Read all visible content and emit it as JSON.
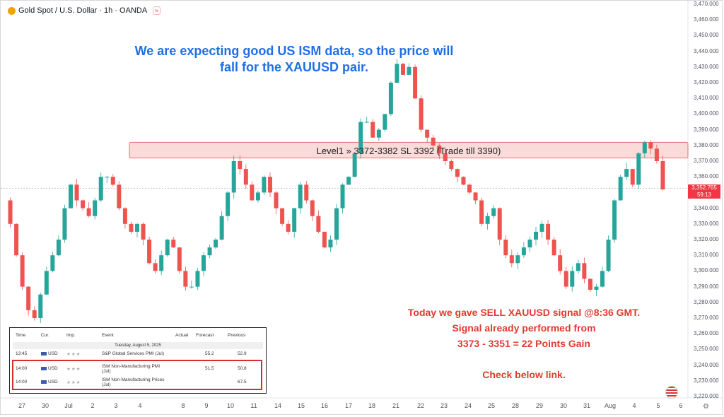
{
  "header": {
    "symbol_title": "Gold Spot / U.S. Dollar · 1h · OANDA",
    "coin_icon": "gold-coin-icon",
    "indicator_icon": "wave-icon"
  },
  "annotations": {
    "top_note": "We are expecting good US ISM data, so the price will fall for the XAUUSD pair.",
    "zone_label": "Level1 » 3372-3382 SL 3392 (Trade till 3390)",
    "signal_lines": [
      "Today we gave SELL XAUUSD signal @8:36 GMT.",
      "Signal already performed from",
      "3373 - 3351 = 22 Points Gain",
      "",
      "Check below link."
    ]
  },
  "price_axis": {
    "ticks": [
      "3,470.000",
      "3,460.000",
      "3,450.000",
      "3,440.000",
      "3,430.000",
      "3,420.000",
      "3,410.000",
      "3,400.000",
      "3,390.000",
      "3,380.000",
      "3,370.000",
      "3,360.000",
      "3,350.000",
      "3,340.000",
      "3,330.000",
      "3,320.000",
      "3,310.000",
      "3,300.000",
      "3,290.000",
      "3,280.000",
      "3,270.000",
      "3,260.000",
      "3,250.000",
      "3,240.000",
      "3,230.000",
      "3,220.000"
    ],
    "current_price": "3,352.765",
    "countdown": "59:13"
  },
  "time_axis": {
    "ticks": [
      "27",
      "30",
      "Jul",
      "2",
      "3",
      "4",
      "8",
      "9",
      "10",
      "11",
      "14",
      "15",
      "16",
      "17",
      "18",
      "21",
      "22",
      "23",
      "24",
      "25",
      "28",
      "29",
      "30",
      "31",
      "Aug",
      "4",
      "5",
      "6"
    ]
  },
  "calendar": {
    "headers": [
      "Time",
      "Cur.",
      "Imp.",
      "Event",
      "Actual",
      "Forecast",
      "Previous"
    ],
    "date": "Tuesday, August 5, 2025",
    "rows": [
      {
        "time": "13:45",
        "cur": "USD",
        "imp": "★★★",
        "event": "S&P Global Services PMI (Jul)",
        "actual": "",
        "forecast": "55.2",
        "previous": "52.9"
      },
      {
        "time": "14:00",
        "cur": "USD",
        "imp": "★★★",
        "event": "ISM Non-Manufacturing PMI (Jul)",
        "actual": "",
        "forecast": "51.5",
        "previous": "50.8"
      },
      {
        "time": "14:00",
        "cur": "USD",
        "imp": "★★★",
        "event": "ISM Non-Manufacturing Prices (Jul)",
        "actual": "",
        "forecast": "",
        "previous": "67.5"
      }
    ]
  },
  "colors": {
    "up": "#26a69a",
    "down": "#ef5350",
    "zone_fill": "#fbdada",
    "zone_border": "#e57373",
    "title_blue": "#1e6fe6",
    "signal_red": "#e03a2f"
  },
  "chart_data": {
    "type": "candlestick",
    "ylim": [
      3220,
      3470
    ],
    "current_price": 3352.765,
    "zone": {
      "low": 3372,
      "high": 3382
    },
    "path": [
      3345,
      3330,
      3310,
      3290,
      3275,
      3270,
      3285,
      3300,
      3310,
      3320,
      3340,
      3355,
      3345,
      3340,
      3335,
      3345,
      3360,
      3360,
      3355,
      3340,
      3330,
      3325,
      3330,
      3320,
      3305,
      3300,
      3310,
      3320,
      3315,
      3300,
      3290,
      3290,
      3300,
      3310,
      3315,
      3320,
      3335,
      3350,
      3370,
      3365,
      3355,
      3345,
      3350,
      3360,
      3350,
      3340,
      3330,
      3325,
      3340,
      3355,
      3345,
      3335,
      3325,
      3315,
      3320,
      3340,
      3355,
      3360,
      3375,
      3395,
      3395,
      3385,
      3390,
      3400,
      3420,
      3432,
      3425,
      3430,
      3410,
      3390,
      3385,
      3380,
      3375,
      3370,
      3365,
      3360,
      3355,
      3350,
      3345,
      3330,
      3335,
      3340,
      3320,
      3310,
      3305,
      3310,
      3315,
      3320,
      3325,
      3330,
      3320,
      3310,
      3300,
      3290,
      3300,
      3305,
      3295,
      3288,
      3290,
      3300,
      3320,
      3345,
      3360,
      3365,
      3355,
      3375,
      3382,
      3378,
      3370,
      3352
    ]
  }
}
